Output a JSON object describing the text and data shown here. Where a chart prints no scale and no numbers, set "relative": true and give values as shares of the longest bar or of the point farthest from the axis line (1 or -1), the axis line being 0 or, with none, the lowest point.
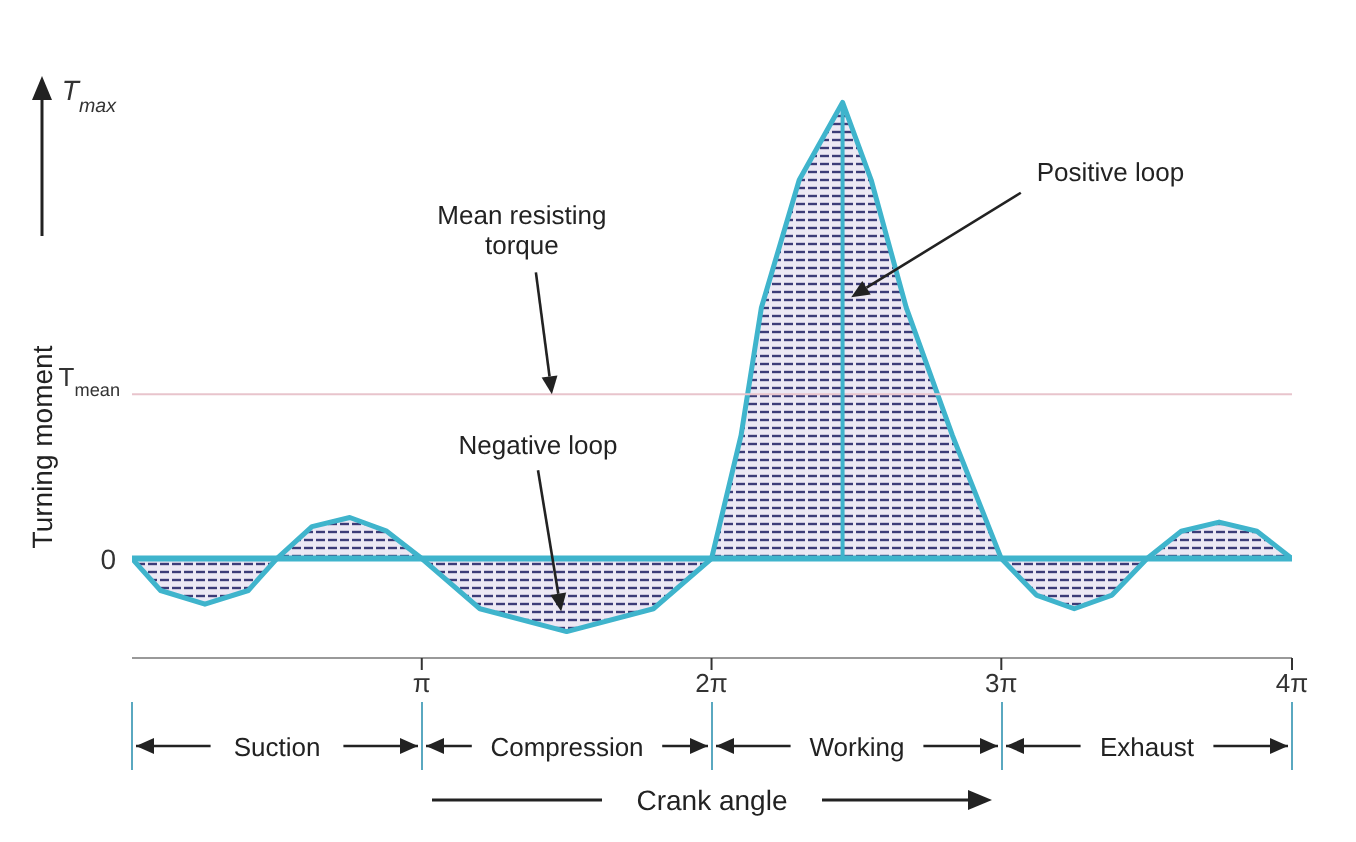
{
  "chart_data": {
    "type": "area",
    "relative": true,
    "xlabel": "Crank angle",
    "ylabel": "Turning moment",
    "xlim": [
      0,
      12.57
    ],
    "xticks": [
      {
        "value": 3.14,
        "label": "π"
      },
      {
        "value": 6.28,
        "label": "2π"
      },
      {
        "value": 9.42,
        "label": "3π"
      },
      {
        "value": 12.57,
        "label": "4π"
      }
    ],
    "x": [
      0,
      0.31,
      0.79,
      1.26,
      1.57,
      1.95,
      2.36,
      2.76,
      3.14,
      3.77,
      4.71,
      5.65,
      6.28,
      6.6,
      6.82,
      7.23,
      7.7,
      8.01,
      8.39,
      8.89,
      9.42,
      9.8,
      10.21,
      10.62,
      11,
      11.37,
      11.78,
      12.19,
      12.57
    ],
    "series": [
      {
        "color": "#3fb4cc",
        "values": [
          0,
          -0.07,
          -0.1,
          -0.07,
          0,
          0.07,
          0.09,
          0.06,
          0,
          -0.11,
          -0.16,
          -0.11,
          0,
          0.27,
          0.55,
          0.83,
          1,
          0.83,
          0.55,
          0.27,
          0,
          -0.08,
          -0.11,
          -0.08,
          0,
          0.06,
          0.08,
          0.06,
          0
        ]
      },
      {
        "type": "line",
        "color": "#3fb4cc",
        "x": [
          7.7,
          7.7
        ],
        "values": [
          0,
          1
        ]
      }
    ],
    "ref_lines": [
      {
        "axis": "y",
        "value": 0.36,
        "label": "T$_{mean}$",
        "color": "#e8c4cc"
      }
    ],
    "annotations": [
      "T$_{max}$",
      {
        "text": "0",
        "x": 0,
        "y": 0
      },
      {
        "text": "Mean resisting torque",
        "x": 4.55,
        "y": 0.36
      },
      "Positive loop",
      "Negative loop",
      "Suction",
      "Compression",
      "Working",
      "Exhaust"
    ],
    "legend": false,
    "grid": false
  }
}
